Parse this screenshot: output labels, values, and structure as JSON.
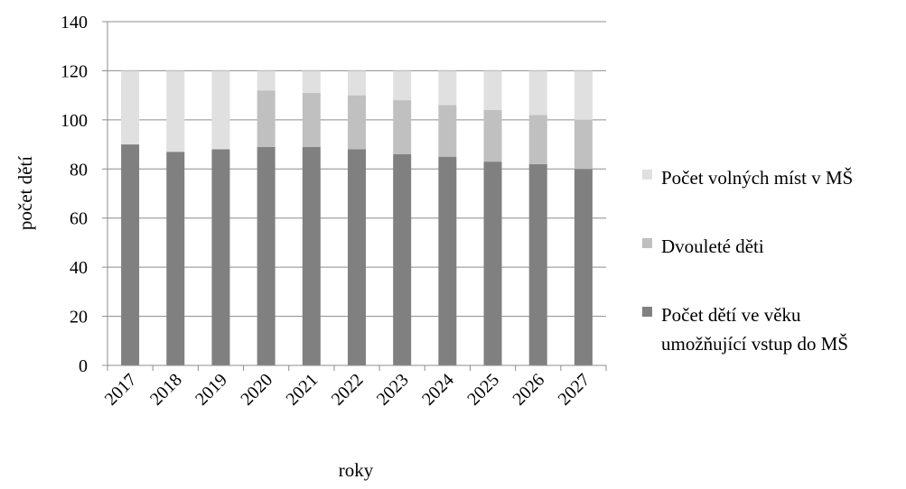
{
  "chart_data": {
    "type": "bar",
    "stacked": true,
    "xlabel": "roky",
    "ylabel": "počet dětí",
    "ylim": [
      0,
      140
    ],
    "y_ticks": [
      0,
      20,
      40,
      60,
      80,
      100,
      120,
      140
    ],
    "grid": "horizontal",
    "legend_position": "right",
    "categories": [
      "2017",
      "2018",
      "2019",
      "2020",
      "2021",
      "2022",
      "2023",
      "2024",
      "2025",
      "2026",
      "2027"
    ],
    "series": [
      {
        "name": "Počet dětí ve věku umožňující vstup do MŠ",
        "legend_lines": [
          "Počet dětí ve věku",
          "umožňující vstup do MŠ"
        ],
        "color": "#808080",
        "values": [
          90,
          87,
          88,
          89,
          89,
          88,
          86,
          85,
          83,
          82,
          80
        ]
      },
      {
        "name": "Dvouleté děti",
        "legend_lines": [
          "Dvouleté děti"
        ],
        "color": "#c0c0c0",
        "values": [
          0,
          0,
          0,
          23,
          22,
          22,
          22,
          21,
          21,
          20,
          20
        ]
      },
      {
        "name": "Počet volných míst v MŠ",
        "legend_lines": [
          "Počet volných míst v MŠ"
        ],
        "color": "#e0e0e0",
        "values": [
          30,
          33,
          32,
          8,
          9,
          10,
          12,
          14,
          16,
          18,
          20
        ]
      }
    ],
    "legend_order": [
      2,
      1,
      0
    ]
  }
}
